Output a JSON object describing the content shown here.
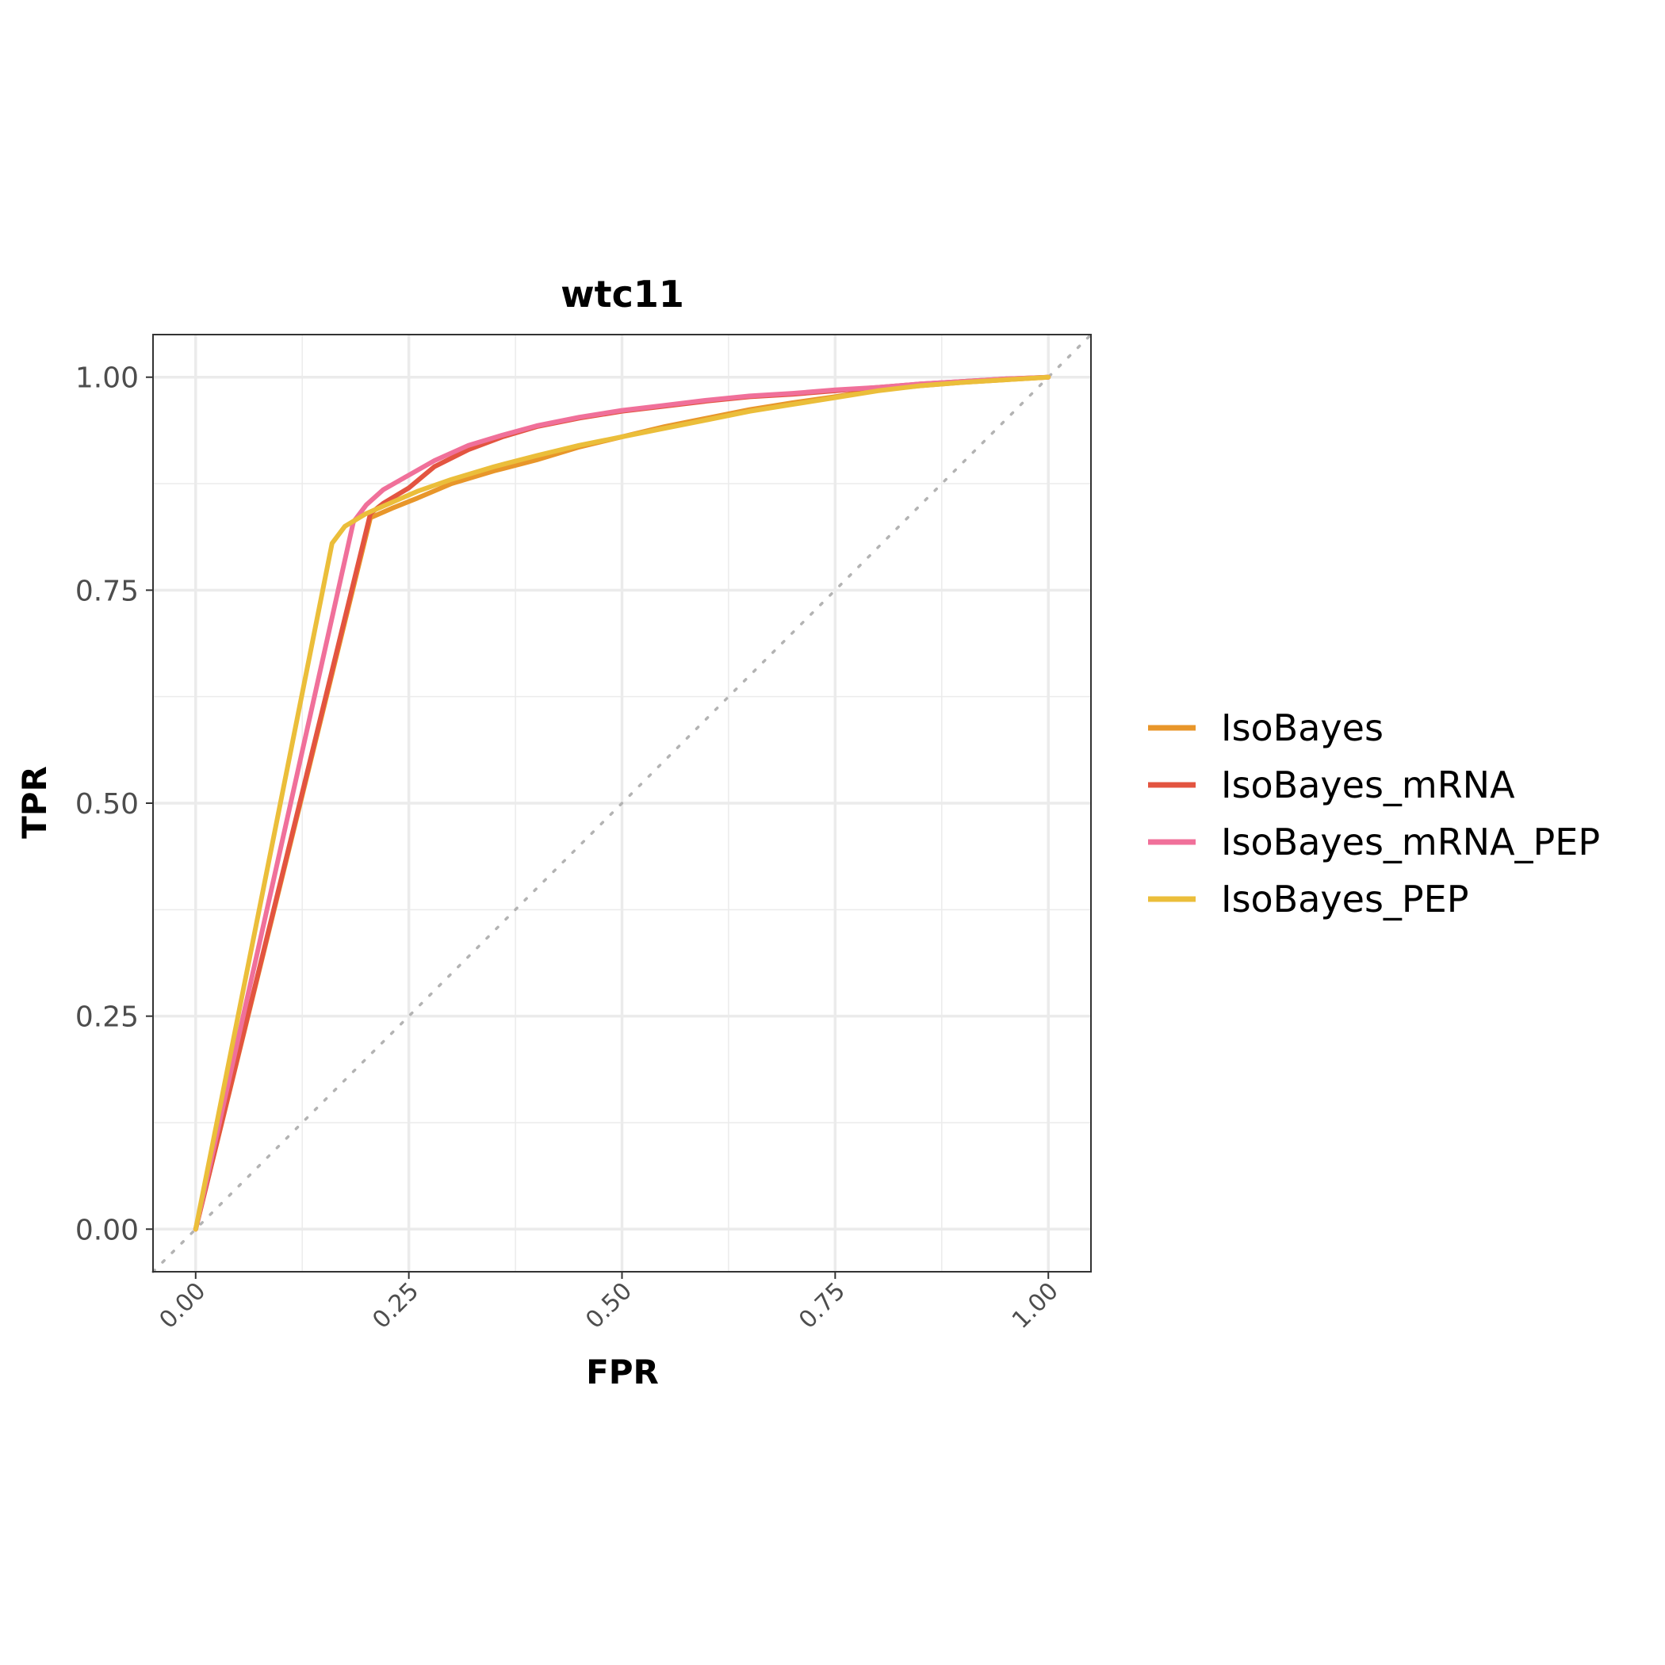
{
  "chart_data": {
    "type": "line",
    "title": "wtc11",
    "xlabel": "FPR",
    "ylabel": "TPR",
    "xlim": [
      -0.05,
      1.05
    ],
    "ylim": [
      -0.05,
      1.05
    ],
    "xticks": [
      {
        "value": 0,
        "label": "0.00"
      },
      {
        "value": 0.25,
        "label": "0.25"
      },
      {
        "value": 0.5,
        "label": "0.50"
      },
      {
        "value": 0.75,
        "label": "0.75"
      },
      {
        "value": 1,
        "label": "1.00"
      }
    ],
    "yticks": [
      {
        "value": 0,
        "label": "0.00"
      },
      {
        "value": 0.25,
        "label": "0.25"
      },
      {
        "value": 0.5,
        "label": "0.50"
      },
      {
        "value": 0.75,
        "label": "0.75"
      },
      {
        "value": 1,
        "label": "1.00"
      }
    ],
    "grid": true,
    "legend_position": "right",
    "reference_line": {
      "style": "dotted",
      "color": "#b3b3b3",
      "from": [
        -0.05,
        -0.05
      ],
      "to": [
        1.05,
        1.05
      ]
    },
    "series": [
      {
        "name": "IsoBayes",
        "color": "#E8962A",
        "x": [
          0,
          0.205,
          0.23,
          0.26,
          0.3,
          0.35,
          0.4,
          0.45,
          0.5,
          0.55,
          0.6,
          0.65,
          0.7,
          0.75,
          0.8,
          0.85,
          0.9,
          0.95,
          1
        ],
        "y": [
          0,
          0.835,
          0.846,
          0.858,
          0.875,
          0.89,
          0.903,
          0.918,
          0.93,
          0.942,
          0.952,
          0.962,
          0.97,
          0.977,
          0.985,
          0.99,
          0.994,
          0.997,
          1
        ]
      },
      {
        "name": "IsoBayes_mRNA",
        "color": "#E35440",
        "x": [
          0,
          0.205,
          0.22,
          0.25,
          0.28,
          0.32,
          0.36,
          0.4,
          0.45,
          0.5,
          0.55,
          0.6,
          0.65,
          0.7,
          0.75,
          0.8,
          0.85,
          0.9,
          0.95,
          1
        ],
        "y": [
          0,
          0.84,
          0.852,
          0.87,
          0.895,
          0.915,
          0.93,
          0.942,
          0.952,
          0.96,
          0.966,
          0.972,
          0.977,
          0.98,
          0.984,
          0.988,
          0.992,
          0.995,
          0.998,
          1
        ]
      },
      {
        "name": "IsoBayes_mRNA_PEP",
        "color": "#F0709A",
        "x": [
          0,
          0.185,
          0.2,
          0.22,
          0.25,
          0.28,
          0.32,
          0.36,
          0.4,
          0.45,
          0.5,
          0.55,
          0.6,
          0.65,
          0.7,
          0.75,
          0.8,
          0.85,
          0.9,
          0.95,
          1
        ],
        "y": [
          0,
          0.83,
          0.85,
          0.868,
          0.885,
          0.902,
          0.92,
          0.932,
          0.943,
          0.953,
          0.961,
          0.967,
          0.973,
          0.978,
          0.981,
          0.985,
          0.988,
          0.992,
          0.995,
          0.998,
          1
        ]
      },
      {
        "name": "IsoBayes_PEP",
        "color": "#EBBE3A",
        "x": [
          0,
          0.16,
          0.175,
          0.2,
          0.23,
          0.26,
          0.3,
          0.35,
          0.4,
          0.45,
          0.5,
          0.55,
          0.6,
          0.65,
          0.7,
          0.75,
          0.8,
          0.85,
          0.9,
          0.95,
          1
        ],
        "y": [
          0,
          0.805,
          0.825,
          0.84,
          0.853,
          0.866,
          0.88,
          0.895,
          0.908,
          0.92,
          0.93,
          0.94,
          0.95,
          0.96,
          0.968,
          0.976,
          0.984,
          0.99,
          0.994,
          0.997,
          1
        ]
      }
    ]
  }
}
